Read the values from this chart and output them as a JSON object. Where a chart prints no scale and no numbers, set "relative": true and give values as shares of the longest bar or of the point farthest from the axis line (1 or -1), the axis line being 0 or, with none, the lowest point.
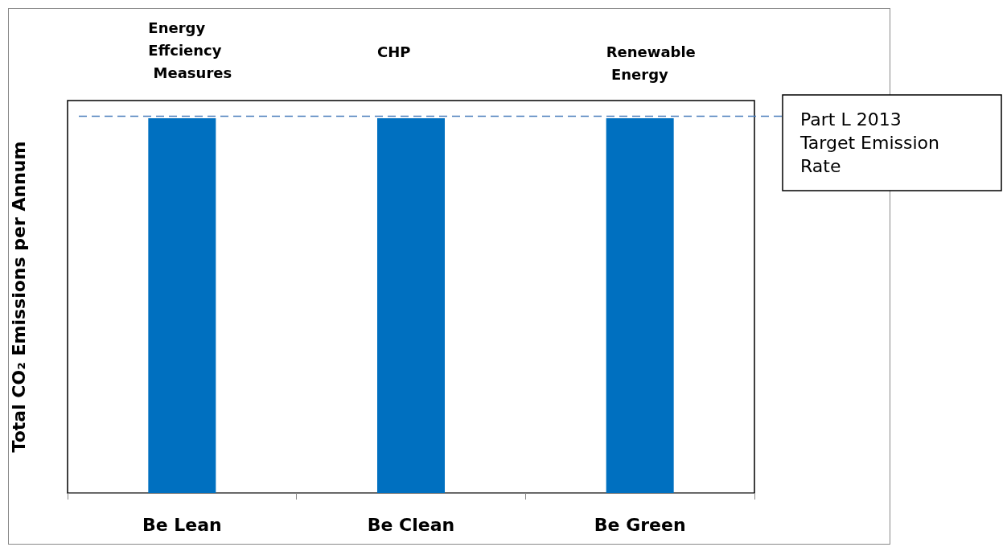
{
  "chart_data": {
    "type": "bar",
    "relative": true,
    "ylabel": "Total CO₂ Emissions per Annum",
    "categories": [
      "Be Lean",
      "Be Clean",
      "Be Green"
    ],
    "values": [
      1,
      1,
      1
    ],
    "color": "#0070c0",
    "ref_lines": [
      {
        "axis": "y",
        "value": 1.005,
        "label": "Part L 2013 Target Emission Rate",
        "color": "#4a7ebb",
        "line_style": "dashed"
      }
    ],
    "annotations": [
      "Energy Effciency Measures",
      "CHP",
      "Renewable Energy"
    ],
    "grid": false
  }
}
